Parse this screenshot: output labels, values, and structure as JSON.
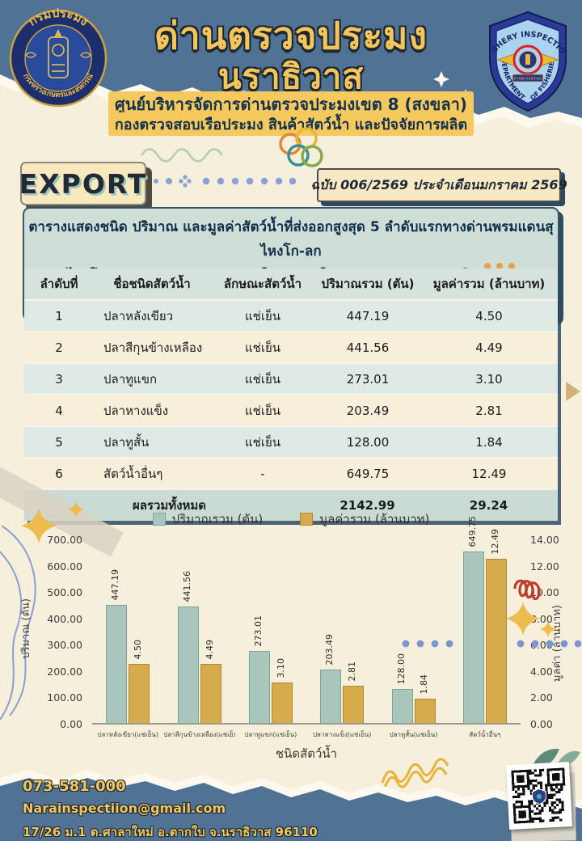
{
  "header": {
    "title_line1": "ด่านตรวจประมง",
    "title_line2": "นราธิวาส",
    "subtitle1": "ศูนย์บริหารจัดการด่านตรวจประมงเขต 8 (สงขลา)",
    "subtitle2": "กองตรวจสอบเรือประมง สินค้าสัตว์น้ำ และปัจจัยการผลิต",
    "left_logo": {
      "top": "กรมประมง",
      "bottom": "กระทรวงเกษตรและสหกรณ์"
    },
    "right_badge": {
      "top": "FISHERY INSPECTION",
      "left": "DEPARTMENT",
      "right": "OF FISHERIES",
      "center": "ด่านตรวจประมง"
    }
  },
  "export_label": "EXPORT",
  "issue_label": "ฉบับ 006/2569 ประจำเดือนมกราคม 2569",
  "description": {
    "line1": "ตารางแสดงชนิด ปริมาณ และมูลค่าสัตว์น้ำที่ส่งออกสูงสุด 5 ลำดับแรกทางด่านพรมแดนสุไหงโก-ลก",
    "line2": "อ.สุไหงโก-ลก และด่านพรมแดนตากใบ  อ.ตากใบ  จ.นราธิวาส  ประจำเดือนธันวาคม  2568"
  },
  "table": {
    "headers": [
      "ลำดับที่",
      "ชื่อชนิดสัตว์น้ำ",
      "ลักษณะสัตว์น้ำ",
      "ปริมาณรวม (ตัน)",
      "มูลค่ารวม (ล้านบาท)"
    ],
    "rows": [
      {
        "no": "1",
        "name": "ปลาหลังเขียว",
        "condition": "แช่เย็น",
        "quantity": "447.19",
        "value": "4.50"
      },
      {
        "no": "2",
        "name": "ปลาสีกุนข้างเหลือง",
        "condition": "แช่เย็น",
        "quantity": "441.56",
        "value": "4.49"
      },
      {
        "no": "3",
        "name": "ปลาทูแขก",
        "condition": "แช่เย็น",
        "quantity": "273.01",
        "value": "3.10"
      },
      {
        "no": "4",
        "name": "ปลาหางแข็ง",
        "condition": "แช่เย็น",
        "quantity": "203.49",
        "value": "2.81"
      },
      {
        "no": "5",
        "name": "ปลาทูสั้น",
        "condition": "แช่เย็น",
        "quantity": "128.00",
        "value": "1.84"
      },
      {
        "no": "6",
        "name": "สัตว์น้ำอื่นๆ",
        "condition": "-",
        "quantity": "649.75",
        "value": "12.49"
      }
    ],
    "total": {
      "label": "ผลรวมทั้งหมด",
      "quantity": "2142.99",
      "value": "29.24"
    }
  },
  "chart_data": {
    "type": "bar",
    "categories": [
      "ปลาหลังเขียว(แช่เย็น)",
      "ปลาสีกุนข้างเหลือง(แช่เย็น)",
      "ปลาทูแขก(แช่เย็น)",
      "ปลาหางแข็ง(แช่เย็น)",
      "ปลาทูสั้น(แช่เย็น)",
      "สัตว์น้ำอื่นๆ"
    ],
    "series": [
      {
        "name": "ปริมาณรวม (ตัน)",
        "axis": "left",
        "color": "#a9c6bd",
        "border": "#7fa399",
        "values": [
          447.19,
          441.56,
          273.01,
          203.49,
          128.0,
          649.75
        ]
      },
      {
        "name": "มูลค่ารวม (ล้านบาท)",
        "axis": "right",
        "color": "#d6ab4b",
        "border": "#b08a30",
        "values": [
          4.5,
          4.49,
          3.1,
          2.81,
          1.84,
          12.49
        ]
      }
    ],
    "xlabel": "ชนิดสัตว์น้ำ",
    "ylabel_left": "ปริมาณ (ตัน)",
    "ylabel_right": "มูลค่า (ล้านบาท)",
    "ylim_left": [
      0,
      700
    ],
    "ytick_step_left": 100,
    "ylim_right": [
      0,
      14
    ],
    "ytick_step_right": 2,
    "grid": false,
    "legend_position": "top"
  },
  "footer": {
    "phone": "073-581-000",
    "email": "Narainspectiion@gmail.com",
    "address": "17/26 ม.1 ต.ศาลาใหม่ อ.ตากใบ จ.นราธิวาส 96110"
  },
  "icons": {
    "sparkle-icon": "✦",
    "dots-row-icon": "●●●",
    "knot-icon": "∞",
    "wave-icon": "〜",
    "spiral-icon": "꩜",
    "leaf-icon": "❧",
    "qr-code": "▦"
  },
  "colors": {
    "band_blue": "#4f7295",
    "page_cream": "#f5efdb",
    "title_yellow": "#f2c65c",
    "highlight_yellow": "#f6c95f",
    "box_teal": "#cfdfd8",
    "bar_teal": "#a9c6bd",
    "bar_gold": "#d6ab4b",
    "footer_text_gold": "#f0c75e"
  }
}
